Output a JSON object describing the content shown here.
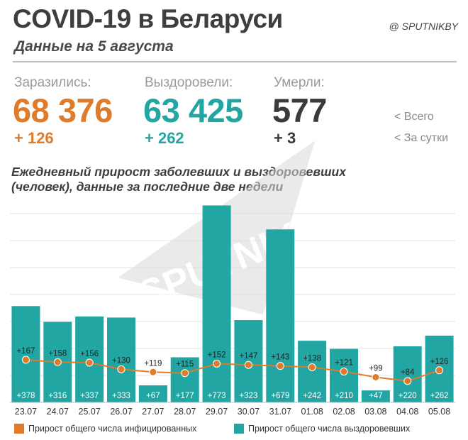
{
  "header": {
    "title": "COVID-19 в Беларуси",
    "subtitle": "Данные на 5 августа",
    "brand": "@ SPUTNIKBY"
  },
  "stats": {
    "infected": {
      "label": "Заразились:",
      "total": "68 376",
      "delta": "+ 126",
      "color": "#e07b29"
    },
    "recovered": {
      "label": "Выздоровели:",
      "total": "63 425",
      "delta": "+ 262",
      "color": "#22a6a3"
    },
    "died": {
      "label": "Умерли:",
      "total": "577",
      "delta": "+ 3",
      "color": "#3a3a3a"
    },
    "legend_total": "<  Всего",
    "legend_daily": "<  За сутки"
  },
  "watermark": "SPUTNIK",
  "chart_data": {
    "type": "bar",
    "title": "Ежедневный прирост заболевших и выздоровевших (человек), данные за последние две недели",
    "categories": [
      "23.07",
      "24.07",
      "25.07",
      "26.07",
      "27.07",
      "28.07",
      "29.07",
      "30.07",
      "31.07",
      "01.08",
      "02.08",
      "03.08",
      "04.08",
      "05.08"
    ],
    "series": [
      {
        "name": "Прирост общего числа выздоровевших",
        "type": "bar",
        "color": "#22a6a3",
        "values": [
          378,
          316,
          337,
          333,
          67,
          177,
          773,
          323,
          679,
          242,
          210,
          47,
          220,
          262
        ],
        "labels": [
          "+378",
          "+316",
          "+337",
          "+333",
          "+67",
          "+177",
          "+773",
          "+323",
          "+679",
          "+242",
          "+210",
          "+47",
          "+220",
          "+262"
        ]
      },
      {
        "name": "Прирост общего числа инфицированных",
        "type": "line",
        "color": "#e07b29",
        "values": [
          167,
          158,
          156,
          130,
          119,
          115,
          152,
          147,
          143,
          138,
          121,
          99,
          84,
          126
        ],
        "labels": [
          "+167",
          "+158",
          "+156",
          "+130",
          "+119",
          "+115",
          "+152",
          "+147",
          "+143",
          "+138",
          "+121",
          "+99",
          "+84",
          "+126"
        ]
      }
    ],
    "ylim": [
      0,
      800
    ],
    "grid": true,
    "legend": "bottom"
  }
}
